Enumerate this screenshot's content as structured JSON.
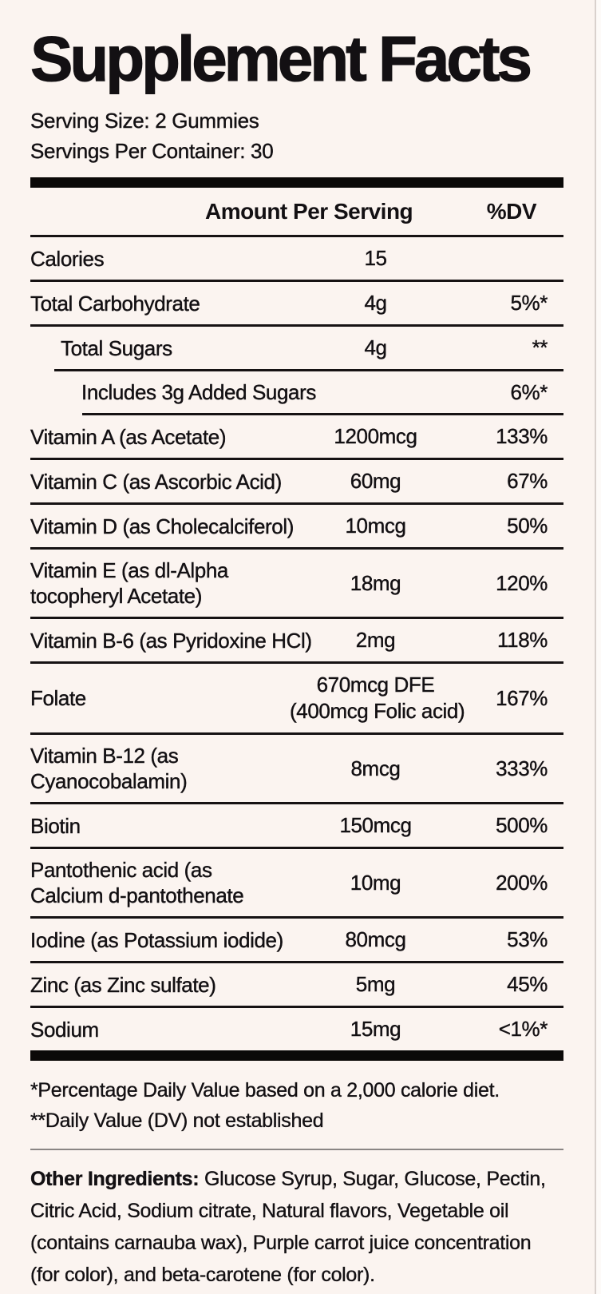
{
  "title": "Supplement Facts",
  "serving": {
    "size": "Serving Size: 2 Gummies",
    "per_container": "Servings Per Container: 30"
  },
  "table": {
    "headers": {
      "amount": "Amount Per Serving",
      "dv": "%DV"
    },
    "rows": [
      {
        "name": "Calories",
        "amount": "15",
        "dv": "",
        "indent": 0,
        "sep_after": 0
      },
      {
        "name": "Total Carbohydrate",
        "amount": "4g",
        "dv": "5%*",
        "indent": 0,
        "sep_after": 0
      },
      {
        "name": "Total Sugars",
        "amount": "4g",
        "dv": "**",
        "indent": 1,
        "sep_after": 30
      },
      {
        "name": "Includes 3g Added Sugars",
        "amount": "",
        "dv": "6%*",
        "indent": 2,
        "sep_after": 65
      },
      {
        "name": "Vitamin A (as Acetate)",
        "amount": "1200mcg",
        "dv": "133%",
        "indent": 0,
        "sep_after": 0
      },
      {
        "name": "Vitamin C (as Ascorbic Acid)",
        "amount": "60mg",
        "dv": "67%",
        "indent": 0,
        "sep_after": 0
      },
      {
        "name": "Vitamin D (as Cholecalciferol)",
        "amount": "10mcg",
        "dv": "50%",
        "indent": 0,
        "sep_after": 0
      },
      {
        "name": "Vitamin E (as dl-Alpha\ntocopheryl Acetate)",
        "amount": "18mg",
        "dv": "120%",
        "indent": 0,
        "sep_after": 0
      },
      {
        "name": "Vitamin B-6 (as Pyridoxine HCl)",
        "amount": "2mg",
        "dv": "118%",
        "indent": 0,
        "sep_after": 0
      },
      {
        "name": "Folate",
        "amount": "670mcg DFE\n(400mcg Folic acid)",
        "dv": "167%",
        "indent": 0,
        "sep_after": 0
      },
      {
        "name": "Vitamin B-12 (as\nCyanocobalamin)",
        "amount": "8mcg",
        "dv": "333%",
        "indent": 0,
        "sep_after": 0
      },
      {
        "name": "Biotin",
        "amount": "150mcg",
        "dv": "500%",
        "indent": 0,
        "sep_after": 0
      },
      {
        "name": "Pantothenic acid (as\nCalcium d-pantothenate",
        "amount": "10mg",
        "dv": "200%",
        "indent": 0,
        "sep_after": 0
      },
      {
        "name": "Iodine (as Potassium iodide)",
        "amount": "80mcg",
        "dv": "53%",
        "indent": 0,
        "sep_after": 0
      },
      {
        "name": "Zinc (as Zinc sulfate)",
        "amount": "5mg",
        "dv": "45%",
        "indent": 0,
        "sep_after": 0
      },
      {
        "name": "Sodium",
        "amount": "15mg",
        "dv": "<1%*",
        "indent": 0,
        "sep_after": 0
      }
    ]
  },
  "footnotes": {
    "line1": "*Percentage Daily Value based on a 2,000 calorie diet.",
    "line2": "**Daily Value (DV) not established"
  },
  "other_ingredients": {
    "label": "Other Ingredients:",
    "text": " Glucose Syrup, Sugar, Glucose, Pectin, Citric Acid, Sodium citrate, Natural flavors, Vegetable oil (contains carnauba wax), Purple carrot juice concentration (for color), and beta-carotene (for color)."
  },
  "colors": {
    "background": "#FBF4F0",
    "text": "#131013",
    "rule_black": "#161213",
    "thick_bar": "#0B0908",
    "gray_divider": "#8A8584",
    "edge_line": "#D9D1CD"
  }
}
